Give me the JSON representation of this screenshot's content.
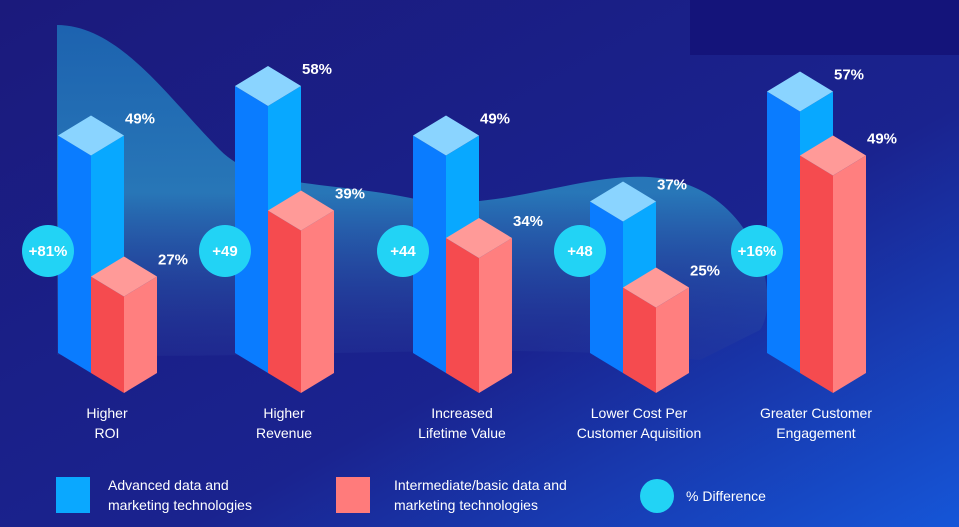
{
  "chart_data": {
    "type": "bar",
    "style": "isometric 3D grouped bars",
    "categories": [
      [
        "Higher",
        "ROI"
      ],
      [
        "Higher",
        "Revenue"
      ],
      [
        "Increased",
        "Lifetime Value"
      ],
      [
        "Lower Cost Per",
        "Customer Aquisition"
      ],
      [
        "Greater Customer",
        "Engagement"
      ]
    ],
    "series": [
      {
        "name": "Advanced data and marketing technologies",
        "legend_lines": [
          "Advanced data and",
          "marketing technologies"
        ],
        "values": [
          49,
          58,
          49,
          37,
          57
        ],
        "labels": [
          "49%",
          "58%",
          "49%",
          "37%",
          "57%"
        ],
        "color": "#0a84ff"
      },
      {
        "name": "Intermediate/basic data and marketing technologies",
        "legend_lines": [
          "Intermediate/basic data and",
          "marketing technologies"
        ],
        "values": [
          27,
          39,
          34,
          25,
          49
        ],
        "labels": [
          "27%",
          "39%",
          "34%",
          "25%",
          "49%"
        ],
        "color": "#ff5a5a"
      }
    ],
    "difference": {
      "name": "% Difference",
      "labels": [
        "+81%",
        "+49",
        "+44",
        "+48",
        "+16%"
      ],
      "color": "#22d3f5"
    },
    "background": "#1a1a82",
    "grid": false,
    "legend_position": "bottom"
  }
}
